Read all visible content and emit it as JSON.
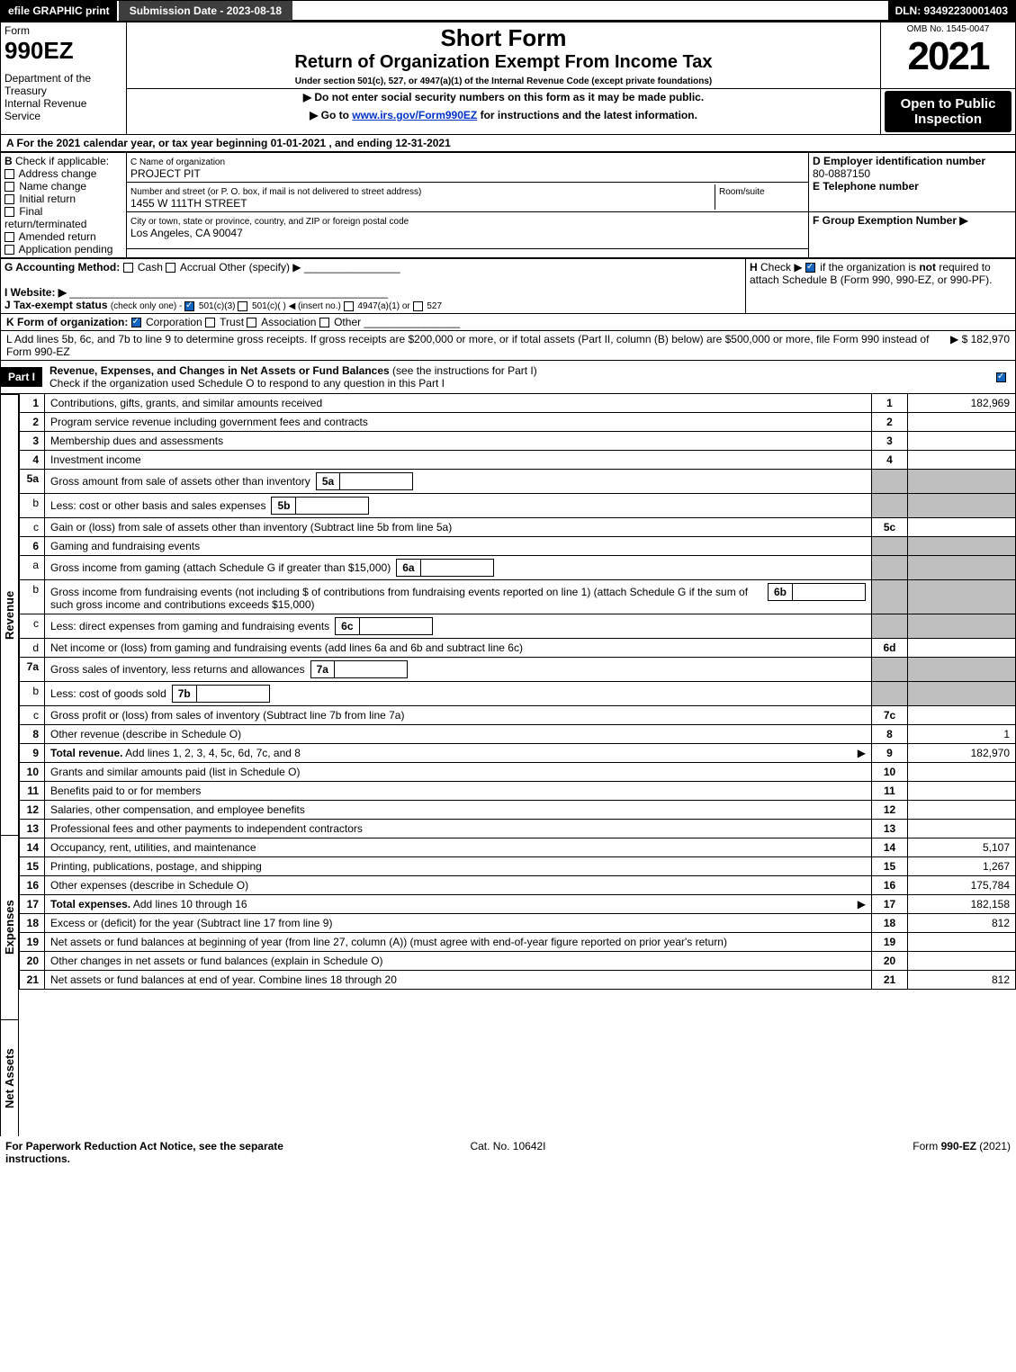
{
  "topbar": {
    "efile": "efile GRAPHIC print",
    "submission": "Submission Date - 2023-08-18",
    "dln": "DLN: 93492230001403"
  },
  "header": {
    "form_word": "Form",
    "form_num": "990EZ",
    "dept": "Department of the Treasury\nInternal Revenue Service",
    "title": "Short Form",
    "subtitle": "Return of Organization Exempt From Income Tax",
    "undersection": "Under section 501(c), 527, or 4947(a)(1) of the Internal Revenue Code (except private foundations)",
    "note1": "▶ Do not enter social security numbers on this form as it may be made public.",
    "note2_pre": "▶ Go to ",
    "note2_link": "www.irs.gov/Form990EZ",
    "note2_post": " for instructions and the latest information.",
    "omb": "OMB No. 1545-0047",
    "year": "2021",
    "open": "Open to Public Inspection"
  },
  "A": {
    "text": "A  For the 2021 calendar year, or tax year beginning 01-01-2021 , and ending 12-31-2021"
  },
  "B": {
    "label": "B",
    "check_if": "Check if applicable:",
    "opts": [
      "Address change",
      "Name change",
      "Initial return",
      "Final return/terminated",
      "Amended return",
      "Application pending"
    ]
  },
  "C": {
    "label": "C Name of organization",
    "name": "PROJECT PIT",
    "street_lbl": "Number and street (or P. O. box, if mail is not delivered to street address)",
    "street": "1455 W 111TH STREET",
    "room_lbl": "Room/suite",
    "city_lbl": "City or town, state or province, country, and ZIP or foreign postal code",
    "city": "Los Angeles, CA  90047"
  },
  "D": {
    "label": "D Employer identification number",
    "ein": "80-0887150"
  },
  "E": {
    "label": "E Telephone number"
  },
  "F": {
    "label": "F Group Exemption Number  ▶"
  },
  "G": {
    "label": "G Accounting Method:",
    "opts": "Cash   Accrual   Other (specify) ▶"
  },
  "H": {
    "label": "H",
    "text": "Check ▶      if the organization is not required to attach Schedule B (Form 990, 990-EZ, or 990-PF)."
  },
  "I": {
    "label": "I Website: ▶"
  },
  "J": {
    "label": "J Tax-exempt status",
    "rest": "(check only one) -      501(c)(3)      501(c)(  ) ◀ (insert no.)      4947(a)(1) or      527"
  },
  "K": {
    "label": "K Form of organization:",
    "opts": "Corporation      Trust      Association      Other"
  },
  "L": {
    "text": "L Add lines 5b, 6c, and 7b to line 9 to determine gross receipts. If gross receipts are $200,000 or more, or if total assets (Part II, column (B) below) are $500,000 or more, file Form 990 instead of Form 990-EZ",
    "amount": "▶ $ 182,970"
  },
  "part1": {
    "label": "Part I",
    "title": "Revenue, Expenses, and Changes in Net Assets or Fund Balances",
    "title_rest": "(see the instructions for Part I)",
    "check": "Check if the organization used Schedule O to respond to any question in this Part I"
  },
  "sections": {
    "revenue": "Revenue",
    "expenses": "Expenses",
    "netassets": "Net Assets"
  },
  "lines": {
    "1": {
      "no": "1",
      "desc": "Contributions, gifts, grants, and similar amounts received",
      "col": "1",
      "amt": "182,969"
    },
    "2": {
      "no": "2",
      "desc": "Program service revenue including government fees and contracts",
      "col": "2"
    },
    "3": {
      "no": "3",
      "desc": "Membership dues and assessments",
      "col": "3"
    },
    "4": {
      "no": "4",
      "desc": "Investment income",
      "col": "4"
    },
    "5a": {
      "no": "5a",
      "desc": "Gross amount from sale of assets other than inventory",
      "box": "5a"
    },
    "5b": {
      "no": "b",
      "desc": "Less: cost or other basis and sales expenses",
      "box": "5b"
    },
    "5c": {
      "no": "c",
      "desc": "Gain or (loss) from sale of assets other than inventory (Subtract line 5b from line 5a)",
      "col": "5c"
    },
    "6": {
      "no": "6",
      "desc": "Gaming and fundraising events"
    },
    "6a": {
      "no": "a",
      "desc": "Gross income from gaming (attach Schedule G if greater than $15,000)",
      "box": "6a"
    },
    "6b": {
      "no": "b",
      "desc": "Gross income from fundraising events (not including $                       of contributions from fundraising events reported on line 1) (attach Schedule G if the sum of such gross income and contributions exceeds $15,000)",
      "box": "6b"
    },
    "6c": {
      "no": "c",
      "desc": "Less: direct expenses from gaming and fundraising events",
      "box": "6c"
    },
    "6d": {
      "no": "d",
      "desc": "Net income or (loss) from gaming and fundraising events (add lines 6a and 6b and subtract line 6c)",
      "col": "6d"
    },
    "7a": {
      "no": "7a",
      "desc": "Gross sales of inventory, less returns and allowances",
      "box": "7a"
    },
    "7b": {
      "no": "b",
      "desc": "Less: cost of goods sold",
      "box": "7b"
    },
    "7c": {
      "no": "c",
      "desc": "Gross profit or (loss) from sales of inventory (Subtract line 7b from line 7a)",
      "col": "7c"
    },
    "8": {
      "no": "8",
      "desc": "Other revenue (describe in Schedule O)",
      "col": "8",
      "amt": "1"
    },
    "9": {
      "no": "9",
      "desc": "Total revenue. Add lines 1, 2, 3, 4, 5c, 6d, 7c, and 8",
      "col": "9",
      "amt": "182,970",
      "bold": true,
      "arrow": true
    },
    "10": {
      "no": "10",
      "desc": "Grants and similar amounts paid (list in Schedule O)",
      "col": "10"
    },
    "11": {
      "no": "11",
      "desc": "Benefits paid to or for members",
      "col": "11"
    },
    "12": {
      "no": "12",
      "desc": "Salaries, other compensation, and employee benefits",
      "col": "12"
    },
    "13": {
      "no": "13",
      "desc": "Professional fees and other payments to independent contractors",
      "col": "13"
    },
    "14": {
      "no": "14",
      "desc": "Occupancy, rent, utilities, and maintenance",
      "col": "14",
      "amt": "5,107"
    },
    "15": {
      "no": "15",
      "desc": "Printing, publications, postage, and shipping",
      "col": "15",
      "amt": "1,267"
    },
    "16": {
      "no": "16",
      "desc": "Other expenses (describe in Schedule O)",
      "col": "16",
      "amt": "175,784"
    },
    "17": {
      "no": "17",
      "desc": "Total expenses. Add lines 10 through 16",
      "col": "17",
      "amt": "182,158",
      "bold": true,
      "arrow": true
    },
    "18": {
      "no": "18",
      "desc": "Excess or (deficit) for the year (Subtract line 17 from line 9)",
      "col": "18",
      "amt": "812"
    },
    "19": {
      "no": "19",
      "desc": "Net assets or fund balances at beginning of year (from line 27, column (A)) (must agree with end-of-year figure reported on prior year's return)",
      "col": "19"
    },
    "20": {
      "no": "20",
      "desc": "Other changes in net assets or fund balances (explain in Schedule O)",
      "col": "20"
    },
    "21": {
      "no": "21",
      "desc": "Net assets or fund balances at end of year. Combine lines 18 through 20",
      "col": "21",
      "amt": "812"
    }
  },
  "footer": {
    "left": "For Paperwork Reduction Act Notice, see the separate instructions.",
    "mid": "Cat. No. 10642I",
    "right_pre": "Form ",
    "right_form": "990-EZ",
    "right_post": " (2021)"
  }
}
